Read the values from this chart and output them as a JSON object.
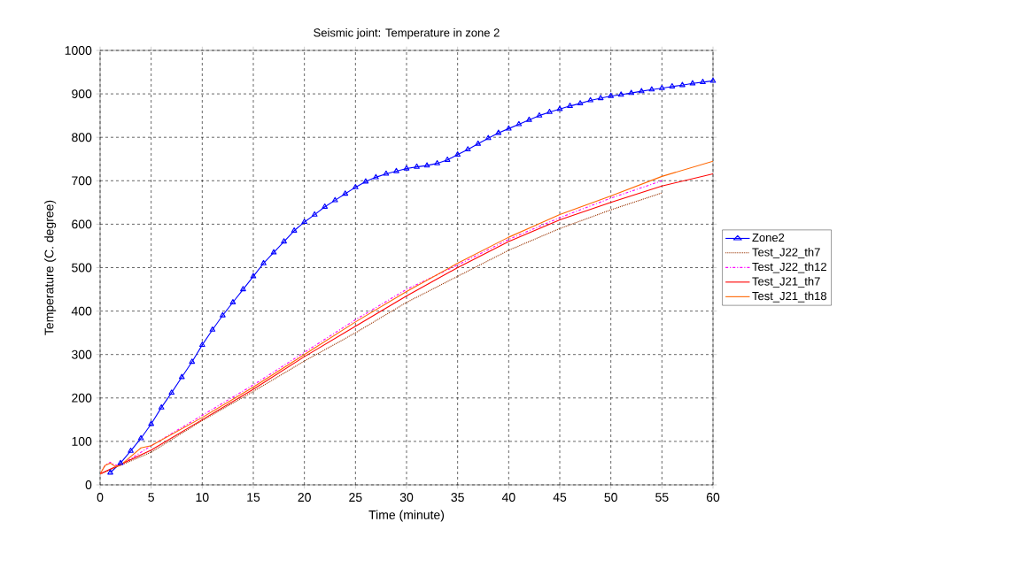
{
  "chart_data": {
    "type": "line",
    "title": "Seismic joint: Temperature in zone 2",
    "xlabel": "Time (minute)",
    "ylabel": "Temperature (C. degree)",
    "xlim": [
      0,
      60
    ],
    "ylim": [
      0,
      1000
    ],
    "xticks": [
      0,
      5,
      10,
      15,
      20,
      25,
      30,
      35,
      40,
      45,
      50,
      55,
      60
    ],
    "yticks": [
      0,
      100,
      200,
      300,
      400,
      500,
      600,
      700,
      800,
      900,
      1000
    ],
    "grid": true,
    "legend": "right",
    "series": [
      {
        "name": "Zone2",
        "color": "#0000ff",
        "marker": "triangle",
        "line_style": "solid",
        "x": [
          1,
          2,
          3,
          4,
          5,
          6,
          7,
          8,
          9,
          10,
          11,
          12,
          13,
          14,
          15,
          16,
          17,
          18,
          19,
          20,
          21,
          22,
          23,
          24,
          25,
          26,
          27,
          28,
          29,
          30,
          31,
          32,
          33,
          34,
          35,
          36,
          37,
          38,
          39,
          40,
          41,
          42,
          43,
          44,
          45,
          46,
          47,
          48,
          49,
          50,
          51,
          52,
          53,
          54,
          55,
          56,
          57,
          58,
          59,
          60
        ],
        "values": [
          28,
          50,
          78,
          107,
          140,
          178,
          212,
          248,
          283,
          322,
          357,
          390,
          420,
          450,
          480,
          510,
          535,
          560,
          585,
          605,
          622,
          640,
          655,
          670,
          685,
          698,
          708,
          716,
          722,
          728,
          732,
          735,
          740,
          748,
          760,
          772,
          785,
          798,
          810,
          820,
          830,
          840,
          850,
          858,
          865,
          872,
          878,
          885,
          890,
          895,
          898,
          902,
          906,
          910,
          913,
          917,
          920,
          924,
          927,
          930
        ]
      },
      {
        "name": "Test_J22_th7",
        "color": "#993300",
        "marker": "none",
        "line_style": "dotted",
        "x": [
          0,
          5,
          10,
          15,
          20,
          25,
          30,
          35,
          40,
          45,
          50,
          55
        ],
        "values": [
          25,
          75,
          148,
          215,
          285,
          350,
          420,
          480,
          540,
          590,
          633,
          672
        ]
      },
      {
        "name": "Test_J22_th12",
        "color": "#ff00ff",
        "marker": "none",
        "line_style": "dashdot",
        "x": [
          0,
          0.5,
          1,
          1.5,
          2,
          5,
          10,
          15,
          20,
          25,
          30,
          35,
          40,
          45,
          50,
          55
        ],
        "values": [
          25,
          45,
          52,
          45,
          45,
          90,
          160,
          230,
          305,
          380,
          450,
          506,
          565,
          615,
          660,
          700
        ]
      },
      {
        "name": "Test_J21_th7",
        "color": "#ff0000",
        "marker": "none",
        "line_style": "solid",
        "x": [
          0,
          5,
          10,
          15,
          20,
          25,
          30,
          35,
          40,
          45,
          50,
          55,
          60
        ],
        "values": [
          25,
          80,
          150,
          220,
          295,
          365,
          435,
          500,
          560,
          610,
          650,
          688,
          716
        ]
      },
      {
        "name": "Test_J21_th18",
        "color": "#ff6600",
        "marker": "none",
        "line_style": "solid",
        "x": [
          0,
          0.5,
          1,
          1.5,
          2,
          4,
          5,
          10,
          15,
          20,
          25,
          30,
          35,
          40,
          45,
          50,
          55,
          60
        ],
        "values": [
          25,
          45,
          50,
          42,
          45,
          85,
          90,
          155,
          225,
          300,
          375,
          445,
          510,
          570,
          622,
          665,
          710,
          745
        ]
      }
    ]
  }
}
